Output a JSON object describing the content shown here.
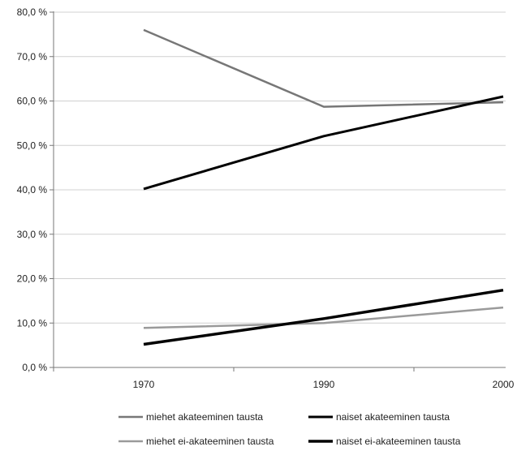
{
  "chart_data": {
    "type": "line",
    "x": [
      "1970",
      "1990",
      "2000"
    ],
    "ylim": [
      0,
      80
    ],
    "y_tick_labels": [
      "0,0 %",
      "10,0 %",
      "20,0 %",
      "30,0 %",
      "40,0 %",
      "50,0 %",
      "60,0 %",
      "70,0 %",
      "80,0 %"
    ],
    "y_ticks": [
      0,
      10,
      20,
      30,
      40,
      50,
      60,
      70,
      80
    ],
    "grid": "horizontal",
    "legend_position": "bottom",
    "series": [
      {
        "name": "miehet akateeminen tausta",
        "values": [
          76.0,
          58.7,
          59.7
        ],
        "color": "#777777",
        "line_width": 2.5
      },
      {
        "name": "naiset akateeminen tausta",
        "values": [
          40.2,
          52.1,
          61.0
        ],
        "color": "#000000",
        "line_width": 3
      },
      {
        "name": "miehet ei-akateeminen tausta",
        "values": [
          8.9,
          10.0,
          13.5
        ],
        "color": "#9a9a9a",
        "line_width": 2.5
      },
      {
        "name": "naiset ei-akateeminen tausta",
        "values": [
          5.2,
          11.0,
          17.4
        ],
        "color": "#000000",
        "line_width": 3.5
      }
    ]
  }
}
